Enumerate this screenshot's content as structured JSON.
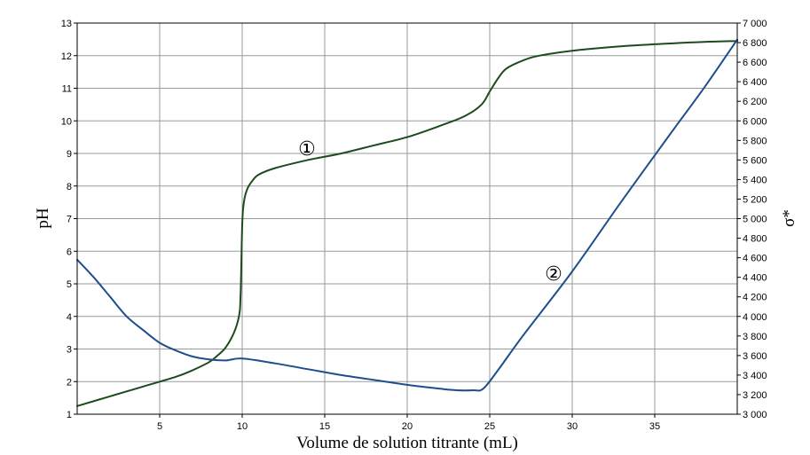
{
  "chart_data": {
    "type": "line",
    "xlabel": "Volume de solution titrante (mL)",
    "ylabel": "pH",
    "y2label": "σ*",
    "xlim": [
      0,
      40
    ],
    "ylim": [
      1,
      13
    ],
    "y2lim": [
      3000,
      7000
    ],
    "x_ticks": [
      5,
      10,
      15,
      20,
      25,
      30,
      35
    ],
    "y_ticks": [
      1,
      2,
      3,
      4,
      5,
      6,
      7,
      8,
      9,
      10,
      11,
      12,
      13
    ],
    "y2_ticks": [
      "3 000",
      "3 200",
      "3 400",
      "3 600",
      "3 800",
      "4 000",
      "4 200",
      "4 400",
      "4 600",
      "4 800",
      "5 000",
      "5 200",
      "5 400",
      "5 600",
      "5 800",
      "6 000",
      "6 200",
      "6 400",
      "6 600",
      "6 800",
      "7 000"
    ],
    "grid": true,
    "series": [
      {
        "name": "①",
        "axis": "left",
        "color": "#1e4b1e",
        "x": [
          0,
          2,
          4,
          6,
          7,
          8,
          8.5,
          9,
          9.5,
          9.8,
          9.9,
          10,
          10.1,
          10.3,
          10.6,
          11,
          12,
          14,
          16,
          18,
          20,
          22,
          23.5,
          24.5,
          25,
          25.5,
          26,
          27,
          28,
          30,
          32,
          35,
          38,
          40
        ],
        "y": [
          1.25,
          1.55,
          1.85,
          2.15,
          2.35,
          2.6,
          2.8,
          3.05,
          3.5,
          4.0,
          4.6,
          6.8,
          7.5,
          7.9,
          8.15,
          8.35,
          8.55,
          8.8,
          9.0,
          9.25,
          9.5,
          9.85,
          10.15,
          10.5,
          10.9,
          11.3,
          11.6,
          11.85,
          12.0,
          12.15,
          12.25,
          12.35,
          12.42,
          12.45
        ]
      },
      {
        "name": "②",
        "axis": "right",
        "color": "#1f4e8c",
        "x": [
          0,
          1,
          2,
          3,
          4,
          5,
          6,
          7,
          8,
          9,
          10,
          12,
          14,
          16,
          18,
          20,
          22,
          23,
          24,
          24.6,
          25.5,
          27,
          30,
          33,
          36,
          38,
          40
        ],
        "y": [
          4580,
          4400,
          4200,
          4000,
          3860,
          3730,
          3650,
          3590,
          3560,
          3550,
          3570,
          3520,
          3460,
          3400,
          3350,
          3300,
          3260,
          3245,
          3245,
          3260,
          3450,
          3800,
          4460,
          5180,
          5880,
          6340,
          6830
        ]
      }
    ]
  }
}
